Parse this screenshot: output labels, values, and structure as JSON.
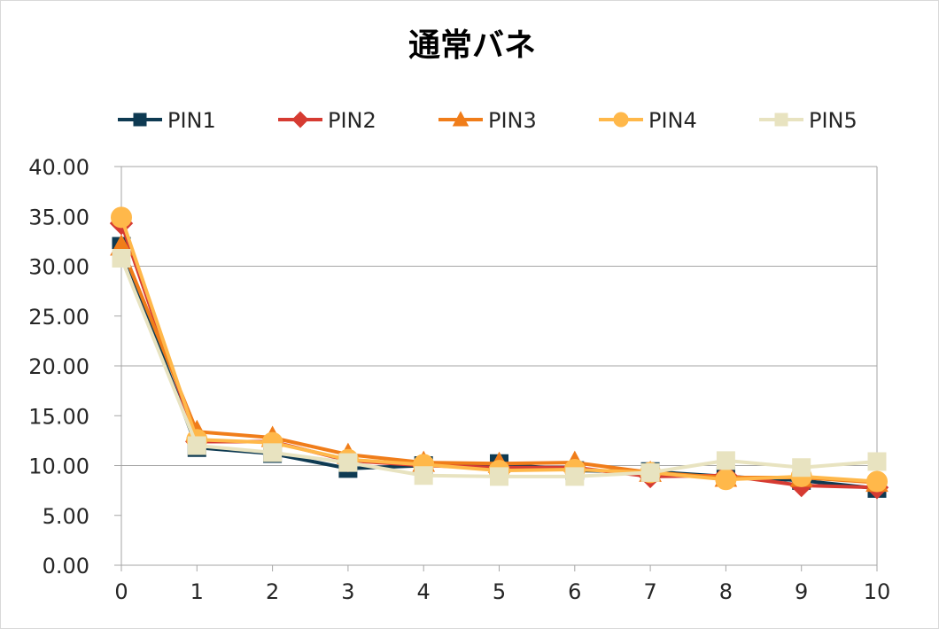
{
  "chart_data": {
    "type": "line",
    "title": "通常バネ",
    "xlabel": "",
    "ylabel": "",
    "x": [
      0,
      1,
      2,
      3,
      4,
      5,
      6,
      7,
      8,
      9,
      10
    ],
    "xlim": [
      0,
      10
    ],
    "ylim": [
      0,
      40
    ],
    "y_ticks": [
      "0.00",
      "5.00",
      "10.00",
      "15.00",
      "20.00",
      "25.00",
      "30.00",
      "35.00",
      "40.00"
    ],
    "x_ticks": [
      "0",
      "1",
      "2",
      "3",
      "4",
      "5",
      "6",
      "7",
      "8",
      "9",
      "10"
    ],
    "grid": "horizontal-major-at-10",
    "legend": "top",
    "series": [
      {
        "name": "PIN1",
        "color": "#0e3a52",
        "marker": "square",
        "values": [
          32.0,
          11.8,
          11.2,
          9.7,
          10.0,
          10.2,
          9.5,
          9.4,
          8.9,
          8.5,
          7.7
        ]
      },
      {
        "name": "PIN2",
        "color": "#d63b32",
        "marker": "diamond",
        "values": [
          34.3,
          12.4,
          12.4,
          10.5,
          10.0,
          9.8,
          9.8,
          8.9,
          9.0,
          8.0,
          7.8
        ]
      },
      {
        "name": "PIN3",
        "color": "#f07d1a",
        "marker": "triangle",
        "values": [
          32.0,
          13.4,
          12.8,
          11.1,
          10.3,
          10.2,
          10.3,
          9.3,
          8.8,
          8.8,
          8.3
        ]
      },
      {
        "name": "PIN4",
        "color": "#ffb84a",
        "marker": "circle",
        "values": [
          34.9,
          12.6,
          12.3,
          10.6,
          10.1,
          9.5,
          9.6,
          9.3,
          8.6,
          8.9,
          8.4
        ]
      },
      {
        "name": "PIN5",
        "color": "#e8e3c0",
        "marker": "square",
        "values": [
          30.8,
          12.0,
          11.3,
          10.3,
          9.0,
          8.9,
          8.9,
          9.3,
          10.5,
          9.8,
          10.4
        ]
      }
    ]
  }
}
